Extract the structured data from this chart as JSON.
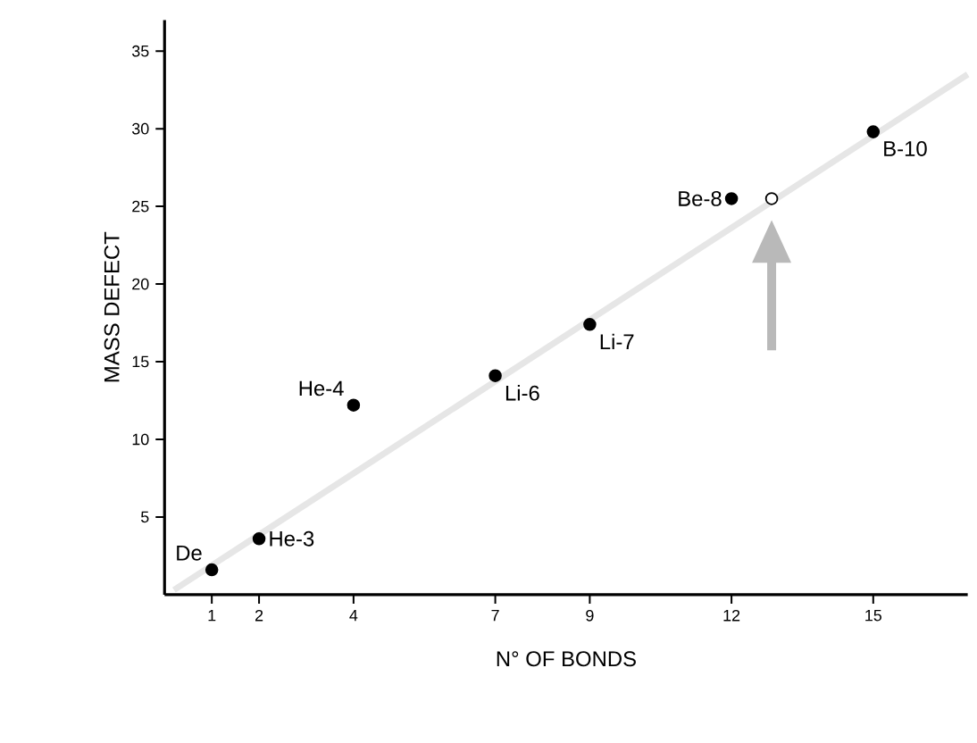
{
  "chart_data": {
    "type": "scatter",
    "xlabel": "N° OF BONDS",
    "ylabel": "MASS DEFECT",
    "xlim": [
      0,
      17
    ],
    "ylim": [
      0,
      37
    ],
    "xticks": [
      1,
      2,
      4,
      7,
      9,
      12,
      15
    ],
    "yticks": [
      5,
      10,
      15,
      20,
      25,
      30,
      35
    ],
    "grid": false,
    "series": [
      {
        "color": "#e6e6e6",
        "type": "line",
        "marker": "none",
        "x": [
          0.2,
          17
        ],
        "values": [
          0.3,
          33.5
        ]
      },
      {
        "color": "#000000",
        "marker": "circle",
        "x": [
          1,
          2,
          4,
          7,
          9,
          12,
          15
        ],
        "values": [
          1.6,
          3.6,
          12.2,
          14.1,
          17.4,
          25.5,
          29.8
        ]
      },
      {
        "color": "#ffffff",
        "marker": "circle",
        "x": [
          12.85
        ],
        "values": [
          25.5
        ]
      }
    ],
    "annotations": [
      {
        "text": "De",
        "x": 1,
        "y": 1.6
      },
      {
        "text": "He-3",
        "x": 2,
        "y": 3.6
      },
      {
        "text": "He-4",
        "x": 4,
        "y": 12.2
      },
      {
        "text": "Li-6",
        "x": 7,
        "y": 14.1
      },
      {
        "text": "Li-7",
        "x": 9,
        "y": 17.4
      },
      {
        "text": "Be-8",
        "x": 12,
        "y": 25.5
      },
      {
        "text": "B-10",
        "x": 15,
        "y": 29.8
      }
    ]
  }
}
